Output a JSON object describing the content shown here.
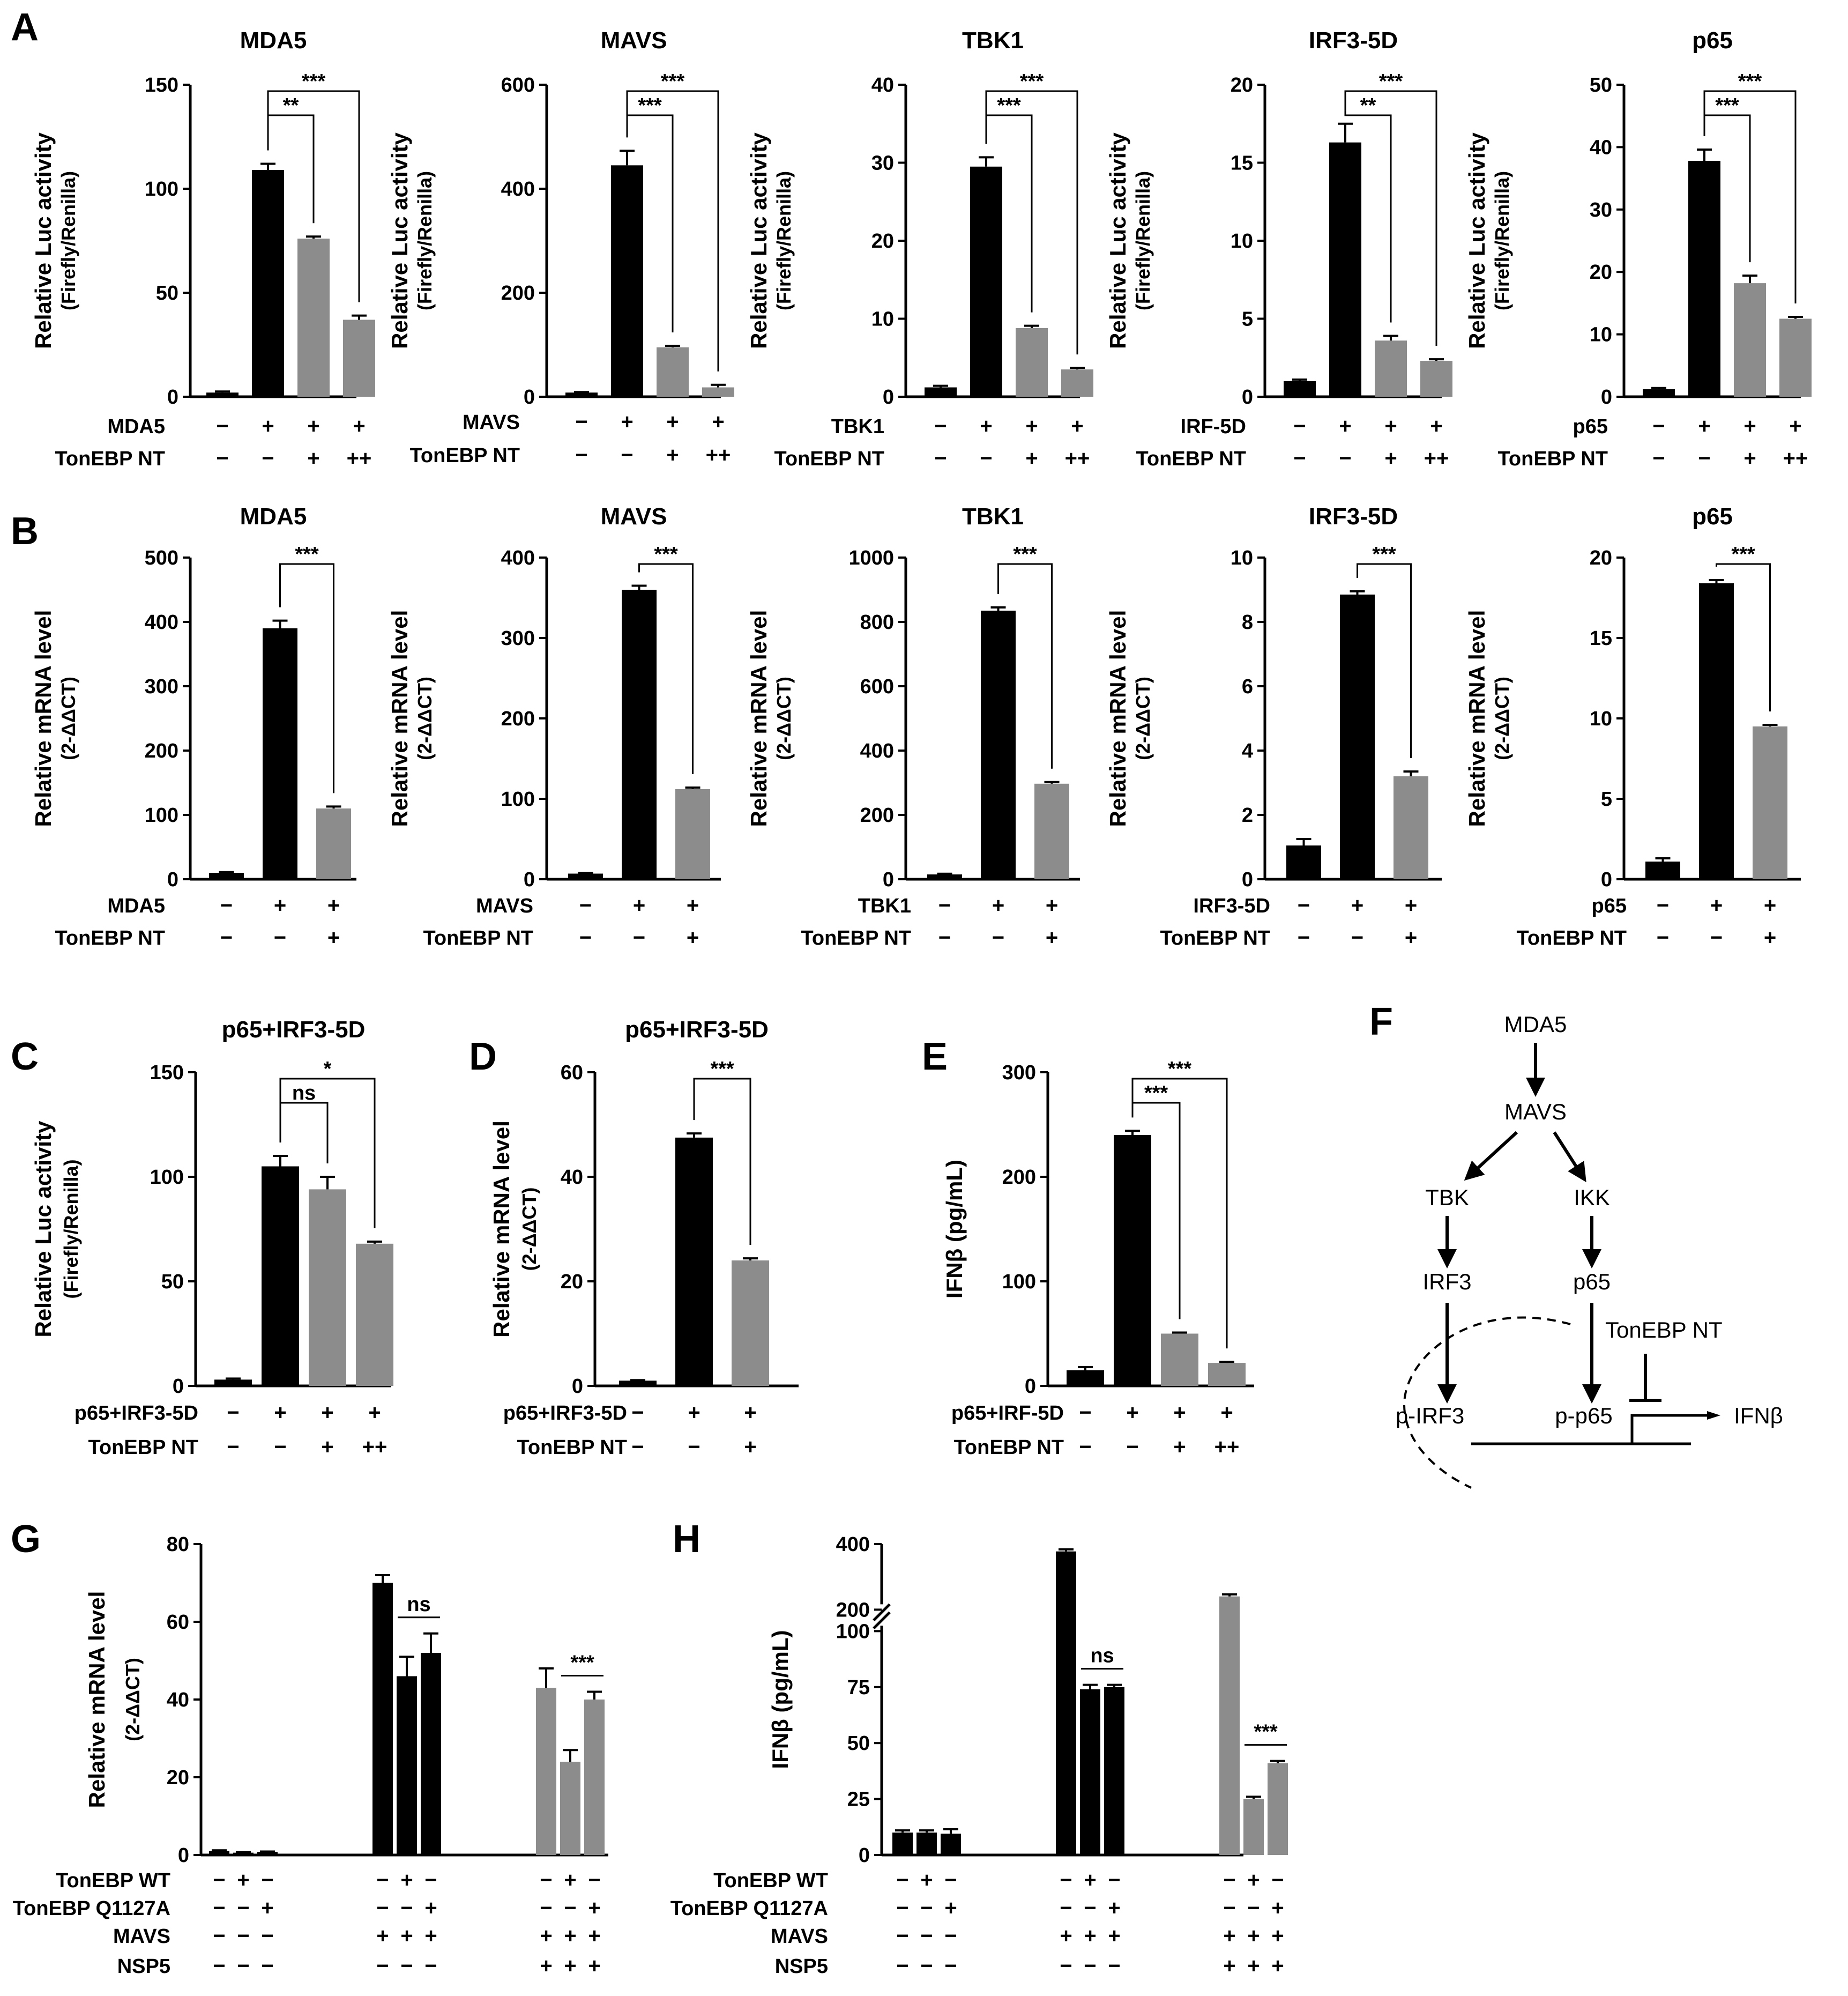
{
  "colors": {
    "black_bar": "#000000",
    "gray_bar": "#8c8c8c"
  },
  "chart_data": [
    {
      "id": "A1",
      "panel_letter": "A",
      "type": "bar",
      "title": "MDA5",
      "ylabel": "Relative Luc activity",
      "ysub": "(Firefly/Renilla)",
      "ylim": [
        0,
        150
      ],
      "yticks": [
        "0",
        "50",
        "100",
        "150"
      ],
      "values": [
        2,
        109,
        76,
        37
      ],
      "errors": [
        0.5,
        3,
        1,
        2
      ],
      "colors": [
        "black",
        "black",
        "gray",
        "gray"
      ],
      "rows": [
        {
          "label": "MDA5",
          "symbols": [
            "−",
            "+",
            "+",
            "+"
          ]
        },
        {
          "label": "TonEBP NT",
          "symbols": [
            "−",
            "−",
            "+",
            "++"
          ]
        }
      ],
      "brackets": [
        {
          "from": 1,
          "to": 2,
          "text": "**"
        },
        {
          "from": 1,
          "to": 3,
          "text": "***"
        }
      ]
    },
    {
      "id": "A2",
      "type": "bar",
      "title": "MAVS",
      "ylabel": "Relative Luc activity",
      "ysub": "(Firefly/Renilla)",
      "ylim": [
        0,
        600
      ],
      "yticks": [
        "0",
        "200",
        "400",
        "600"
      ],
      "values": [
        8,
        445,
        95,
        18
      ],
      "errors": [
        1,
        28,
        3,
        5
      ],
      "colors": [
        "black",
        "black",
        "gray",
        "gray"
      ],
      "rows": [
        {
          "label": "MAVS",
          "symbols": [
            "−",
            "+",
            "+",
            "+"
          ]
        },
        {
          "label": "TonEBP NT",
          "symbols": [
            "−",
            "−",
            "+",
            "++"
          ]
        }
      ],
      "brackets": [
        {
          "from": 1,
          "to": 2,
          "text": "***"
        },
        {
          "from": 1,
          "to": 3,
          "text": "***"
        }
      ]
    },
    {
      "id": "A3",
      "type": "bar",
      "title": "TBK1",
      "ylabel": "Relative Luc activity",
      "ysub": "(Firefly/Renilla)",
      "ylim": [
        0,
        40
      ],
      "yticks": [
        "0",
        "10",
        "20",
        "30",
        "40"
      ],
      "values": [
        1.2,
        29.5,
        8.8,
        3.5
      ],
      "errors": [
        0.2,
        1.2,
        0.3,
        0.2
      ],
      "colors": [
        "black",
        "black",
        "gray",
        "gray"
      ],
      "rows": [
        {
          "label": "TBK1",
          "symbols": [
            "−",
            "+",
            "+",
            "+"
          ]
        },
        {
          "label": "TonEBP NT",
          "symbols": [
            "−",
            "−",
            "+",
            "++"
          ]
        }
      ],
      "brackets": [
        {
          "from": 1,
          "to": 2,
          "text": "***"
        },
        {
          "from": 1,
          "to": 3,
          "text": "***"
        }
      ]
    },
    {
      "id": "A4",
      "type": "bar",
      "title": "IRF3-5D",
      "ylabel": "Relative Luc activity",
      "ysub": "(Firefly/Renilla)",
      "ylim": [
        0,
        20
      ],
      "yticks": [
        "0",
        "5",
        "10",
        "15",
        "20"
      ],
      "values": [
        1.0,
        16.3,
        3.6,
        2.3
      ],
      "errors": [
        0.1,
        1.2,
        0.3,
        0.1
      ],
      "colors": [
        "black",
        "black",
        "gray",
        "gray"
      ],
      "rows": [
        {
          "label": "IRF-5D",
          "symbols": [
            "−",
            "+",
            "+",
            "+"
          ]
        },
        {
          "label": "TonEBP NT",
          "symbols": [
            "−",
            "−",
            "+",
            "++"
          ]
        }
      ],
      "brackets": [
        {
          "from": 1,
          "to": 2,
          "text": "**"
        },
        {
          "from": 1,
          "to": 3,
          "text": "***"
        }
      ]
    },
    {
      "id": "A5",
      "type": "bar",
      "title": "p65",
      "ylabel": "Relative Luc activity",
      "ysub": "(Firefly/Renilla)",
      "ylim": [
        0,
        50
      ],
      "yticks": [
        "0",
        "10",
        "20",
        "30",
        "40",
        "50"
      ],
      "values": [
        1.2,
        37.8,
        18.2,
        12.5
      ],
      "errors": [
        0.2,
        1.8,
        1.2,
        0.3
      ],
      "colors": [
        "black",
        "black",
        "gray",
        "gray"
      ],
      "rows": [
        {
          "label": "p65",
          "symbols": [
            "−",
            "+",
            "+",
            "+"
          ]
        },
        {
          "label": "TonEBP NT",
          "symbols": [
            "−",
            "−",
            "+",
            "++"
          ]
        }
      ],
      "brackets": [
        {
          "from": 1,
          "to": 2,
          "text": "***"
        },
        {
          "from": 1,
          "to": 3,
          "text": "***"
        }
      ]
    },
    {
      "id": "B1",
      "panel_letter": "B",
      "type": "bar",
      "title": "MDA5",
      "ylabel": "Relative mRNA level",
      "ysub": "(2-ΔΔCT)",
      "ylim": [
        0,
        500
      ],
      "yticks": [
        "0",
        "100",
        "200",
        "300",
        "400",
        "500"
      ],
      "values": [
        10,
        390,
        110
      ],
      "errors": [
        1,
        12,
        3
      ],
      "colors": [
        "black",
        "black",
        "gray"
      ],
      "rows": [
        {
          "label": "MDA5",
          "symbols": [
            "−",
            "+",
            "+"
          ]
        },
        {
          "label": "TonEBP NT",
          "symbols": [
            "−",
            "−",
            "+"
          ]
        }
      ],
      "brackets": [
        {
          "from": 1,
          "to": 2,
          "text": "***"
        }
      ]
    },
    {
      "id": "B2",
      "type": "bar",
      "title": "MAVS",
      "ylabel": "Relative mRNA level",
      "ysub": "(2-ΔΔCT)",
      "ylim": [
        0,
        400
      ],
      "yticks": [
        "0",
        "100",
        "200",
        "300",
        "400"
      ],
      "values": [
        7,
        360,
        112
      ],
      "errors": [
        1,
        5,
        2
      ],
      "colors": [
        "black",
        "black",
        "gray"
      ],
      "rows": [
        {
          "label": "MAVS",
          "symbols": [
            "−",
            "+",
            "+"
          ]
        },
        {
          "label": "TonEBP NT",
          "symbols": [
            "−",
            "−",
            "+"
          ]
        }
      ],
      "brackets": [
        {
          "from": 1,
          "to": 2,
          "text": "***"
        }
      ]
    },
    {
      "id": "B3",
      "type": "bar",
      "title": "TBK1",
      "ylabel": "Relative mRNA level",
      "ysub": "(2-ΔΔCT)",
      "ylim": [
        0,
        1000
      ],
      "yticks": [
        "0",
        "200",
        "400",
        "600",
        "800",
        "1000"
      ],
      "values": [
        15,
        835,
        297
      ],
      "errors": [
        2,
        10,
        5
      ],
      "colors": [
        "black",
        "black",
        "gray"
      ],
      "rows": [
        {
          "label": "TBK1",
          "symbols": [
            "−",
            "+",
            "+"
          ]
        },
        {
          "label": "TonEBP NT",
          "symbols": [
            "−",
            "−",
            "+"
          ]
        }
      ],
      "brackets": [
        {
          "from": 1,
          "to": 2,
          "text": "***"
        }
      ]
    },
    {
      "id": "B4",
      "type": "bar",
      "title": "IRF3-5D",
      "ylabel": "Relative mRNA level",
      "ysub": "(2-ΔΔCT)",
      "ylim": [
        0,
        10
      ],
      "yticks": [
        "0",
        "2",
        "4",
        "6",
        "8",
        "10"
      ],
      "values": [
        1.05,
        8.85,
        3.2
      ],
      "errors": [
        0.2,
        0.1,
        0.15
      ],
      "colors": [
        "black",
        "black",
        "gray"
      ],
      "rows": [
        {
          "label": "IRF3-5D",
          "symbols": [
            "−",
            "+",
            "+"
          ]
        },
        {
          "label": "TonEBP NT",
          "symbols": [
            "−",
            "−",
            "+"
          ]
        }
      ],
      "brackets": [
        {
          "from": 1,
          "to": 2,
          "text": "***"
        }
      ]
    },
    {
      "id": "B5",
      "type": "bar",
      "title": "p65",
      "ylabel": "Relative mRNA level",
      "ysub": "(2-ΔΔCT)",
      "ylim": [
        0,
        20
      ],
      "yticks": [
        "0",
        "5",
        "10",
        "15",
        "20"
      ],
      "values": [
        1.1,
        18.4,
        9.5
      ],
      "errors": [
        0.2,
        0.2,
        0.1
      ],
      "colors": [
        "black",
        "black",
        "gray"
      ],
      "rows": [
        {
          "label": "p65",
          "symbols": [
            "−",
            "+",
            "+"
          ]
        },
        {
          "label": "TonEBP NT",
          "symbols": [
            "−",
            "−",
            "+"
          ]
        }
      ],
      "brackets": [
        {
          "from": 1,
          "to": 2,
          "text": "***"
        }
      ]
    },
    {
      "id": "C",
      "panel_letter": "C",
      "type": "bar",
      "title": "p65+IRF3-5D",
      "ylabel": "Relative Luc activity",
      "ysub": "(Firefly/Renilla)",
      "ylim": [
        0,
        150
      ],
      "yticks": [
        "0",
        "50",
        "100",
        "150"
      ],
      "values": [
        3,
        105,
        94,
        68
      ],
      "errors": [
        0.5,
        5,
        6,
        1
      ],
      "colors": [
        "black",
        "black",
        "gray",
        "gray"
      ],
      "rows": [
        {
          "label": "p65+IRF3-5D",
          "symbols": [
            "−",
            "+",
            "+",
            "+"
          ]
        },
        {
          "label": "TonEBP NT",
          "symbols": [
            "−",
            "−",
            "+",
            "++"
          ]
        }
      ],
      "brackets": [
        {
          "from": 1,
          "to": 2,
          "text": "ns"
        },
        {
          "from": 1,
          "to": 3,
          "text": "*"
        }
      ]
    },
    {
      "id": "D",
      "panel_letter": "D",
      "type": "bar",
      "title": "p65+IRF3-5D",
      "ylabel": "Relative mRNA level",
      "ysub": "(2-ΔΔCT)",
      "ylim": [
        0,
        60
      ],
      "yticks": [
        "0",
        "20",
        "40",
        "60"
      ],
      "values": [
        1,
        47.5,
        24
      ],
      "errors": [
        0.1,
        0.8,
        0.4
      ],
      "colors": [
        "black",
        "black",
        "gray"
      ],
      "rows": [
        {
          "label": "p65+IRF3-5D",
          "symbols": [
            "−",
            "+",
            "+"
          ]
        },
        {
          "label": "TonEBP NT",
          "symbols": [
            "−",
            "−",
            "+"
          ]
        }
      ],
      "brackets": [
        {
          "from": 1,
          "to": 2,
          "text": "***"
        }
      ]
    },
    {
      "id": "E",
      "panel_letter": "E",
      "type": "bar",
      "title": "",
      "ylabel": "IFNβ (pg/mL)",
      "ysub": "",
      "ylim": [
        0,
        300
      ],
      "yticks": [
        "0",
        "100",
        "200",
        "300"
      ],
      "values": [
        15,
        240,
        50,
        22
      ],
      "errors": [
        3,
        4,
        1,
        1
      ],
      "colors": [
        "black",
        "black",
        "gray",
        "gray"
      ],
      "rows": [
        {
          "label": "p65+IRF-5D",
          "symbols": [
            "−",
            "+",
            "+",
            "+"
          ]
        },
        {
          "label": "TonEBP NT",
          "symbols": [
            "−",
            "−",
            "+",
            "++"
          ]
        }
      ],
      "brackets": [
        {
          "from": 1,
          "to": 2,
          "text": "***"
        },
        {
          "from": 1,
          "to": 3,
          "text": "***"
        }
      ]
    },
    {
      "id": "G",
      "panel_letter": "G",
      "type": "bar",
      "title": "",
      "ylabel": "Relative mRNA level",
      "ysub": "(2-ΔΔCT)",
      "ylim": [
        0,
        80
      ],
      "yticks": [
        "0",
        "20",
        "40",
        "60",
        "80"
      ],
      "values": [
        1,
        0.6,
        0.8,
        70,
        46,
        52,
        43,
        24,
        40
      ],
      "errors": [
        0.2,
        0.1,
        0.1,
        2,
        5,
        5,
        5,
        3,
        2
      ],
      "colors": [
        "black",
        "black",
        "black",
        "black",
        "black",
        "black",
        "gray",
        "gray",
        "gray"
      ],
      "rows": [
        {
          "label": "TonEBP WT",
          "symbols": [
            "−",
            "+",
            "−",
            "−",
            "+",
            "−",
            "−",
            "+",
            "−"
          ]
        },
        {
          "label": "TonEBP Q1127A",
          "symbols": [
            "−",
            "−",
            "+",
            "−",
            "−",
            "+",
            "−",
            "−",
            "+"
          ]
        },
        {
          "label": "MAVS",
          "symbols": [
            "−",
            "−",
            "−",
            "+",
            "+",
            "+",
            "+",
            "+",
            "+"
          ]
        },
        {
          "label": "NSP5",
          "symbols": [
            "−",
            "−",
            "−",
            "−",
            "−",
            "−",
            "+",
            "+",
            "+"
          ]
        }
      ],
      "flat_brackets": [
        {
          "from": 4,
          "to": 5,
          "text": "ns"
        },
        {
          "from": 7,
          "to": 8,
          "text": "***"
        }
      ]
    },
    {
      "id": "H",
      "panel_letter": "H",
      "type": "bar",
      "title": "",
      "ylabel": "IFNβ (pg/mL)",
      "ysub": "",
      "axis_break": "between 100 and 200",
      "yticks": [
        "0",
        "25",
        "50",
        "75",
        "100",
        "200",
        "400"
      ],
      "values": [
        10,
        10,
        9.5,
        370,
        74,
        75,
        230,
        25,
        41
      ],
      "errors": [
        1,
        1,
        2,
        8,
        2,
        1,
        5,
        1,
        1
      ],
      "colors": [
        "black",
        "black",
        "black",
        "black",
        "black",
        "black",
        "gray",
        "gray",
        "gray"
      ],
      "rows": [
        {
          "label": "TonEBP WT",
          "symbols": [
            "−",
            "+",
            "−",
            "−",
            "+",
            "−",
            "−",
            "+",
            "−"
          ]
        },
        {
          "label": "TonEBP Q1127A",
          "symbols": [
            "−",
            "−",
            "+",
            "−",
            "−",
            "+",
            "−",
            "−",
            "+"
          ]
        },
        {
          "label": "MAVS",
          "symbols": [
            "−",
            "−",
            "−",
            "+",
            "+",
            "+",
            "+",
            "+",
            "+"
          ]
        },
        {
          "label": "NSP5",
          "symbols": [
            "−",
            "−",
            "−",
            "−",
            "−",
            "−",
            "+",
            "+",
            "+"
          ]
        }
      ],
      "flat_brackets": [
        {
          "from": 4,
          "to": 5,
          "text": "ns"
        },
        {
          "from": 7,
          "to": 8,
          "text": "***"
        }
      ]
    }
  ],
  "panelF": {
    "letter": "F",
    "nodes": {
      "mda5": "MDA5",
      "mavs": "MAVS",
      "tbk": "TBK",
      "ikk": "IKK",
      "irf3": "IRF3",
      "p65": "p65",
      "tonebp": "TonEBP NT",
      "pirf3": "p-IRF3",
      "pp65": "p-p65",
      "ifnb": "IFNβ"
    }
  }
}
